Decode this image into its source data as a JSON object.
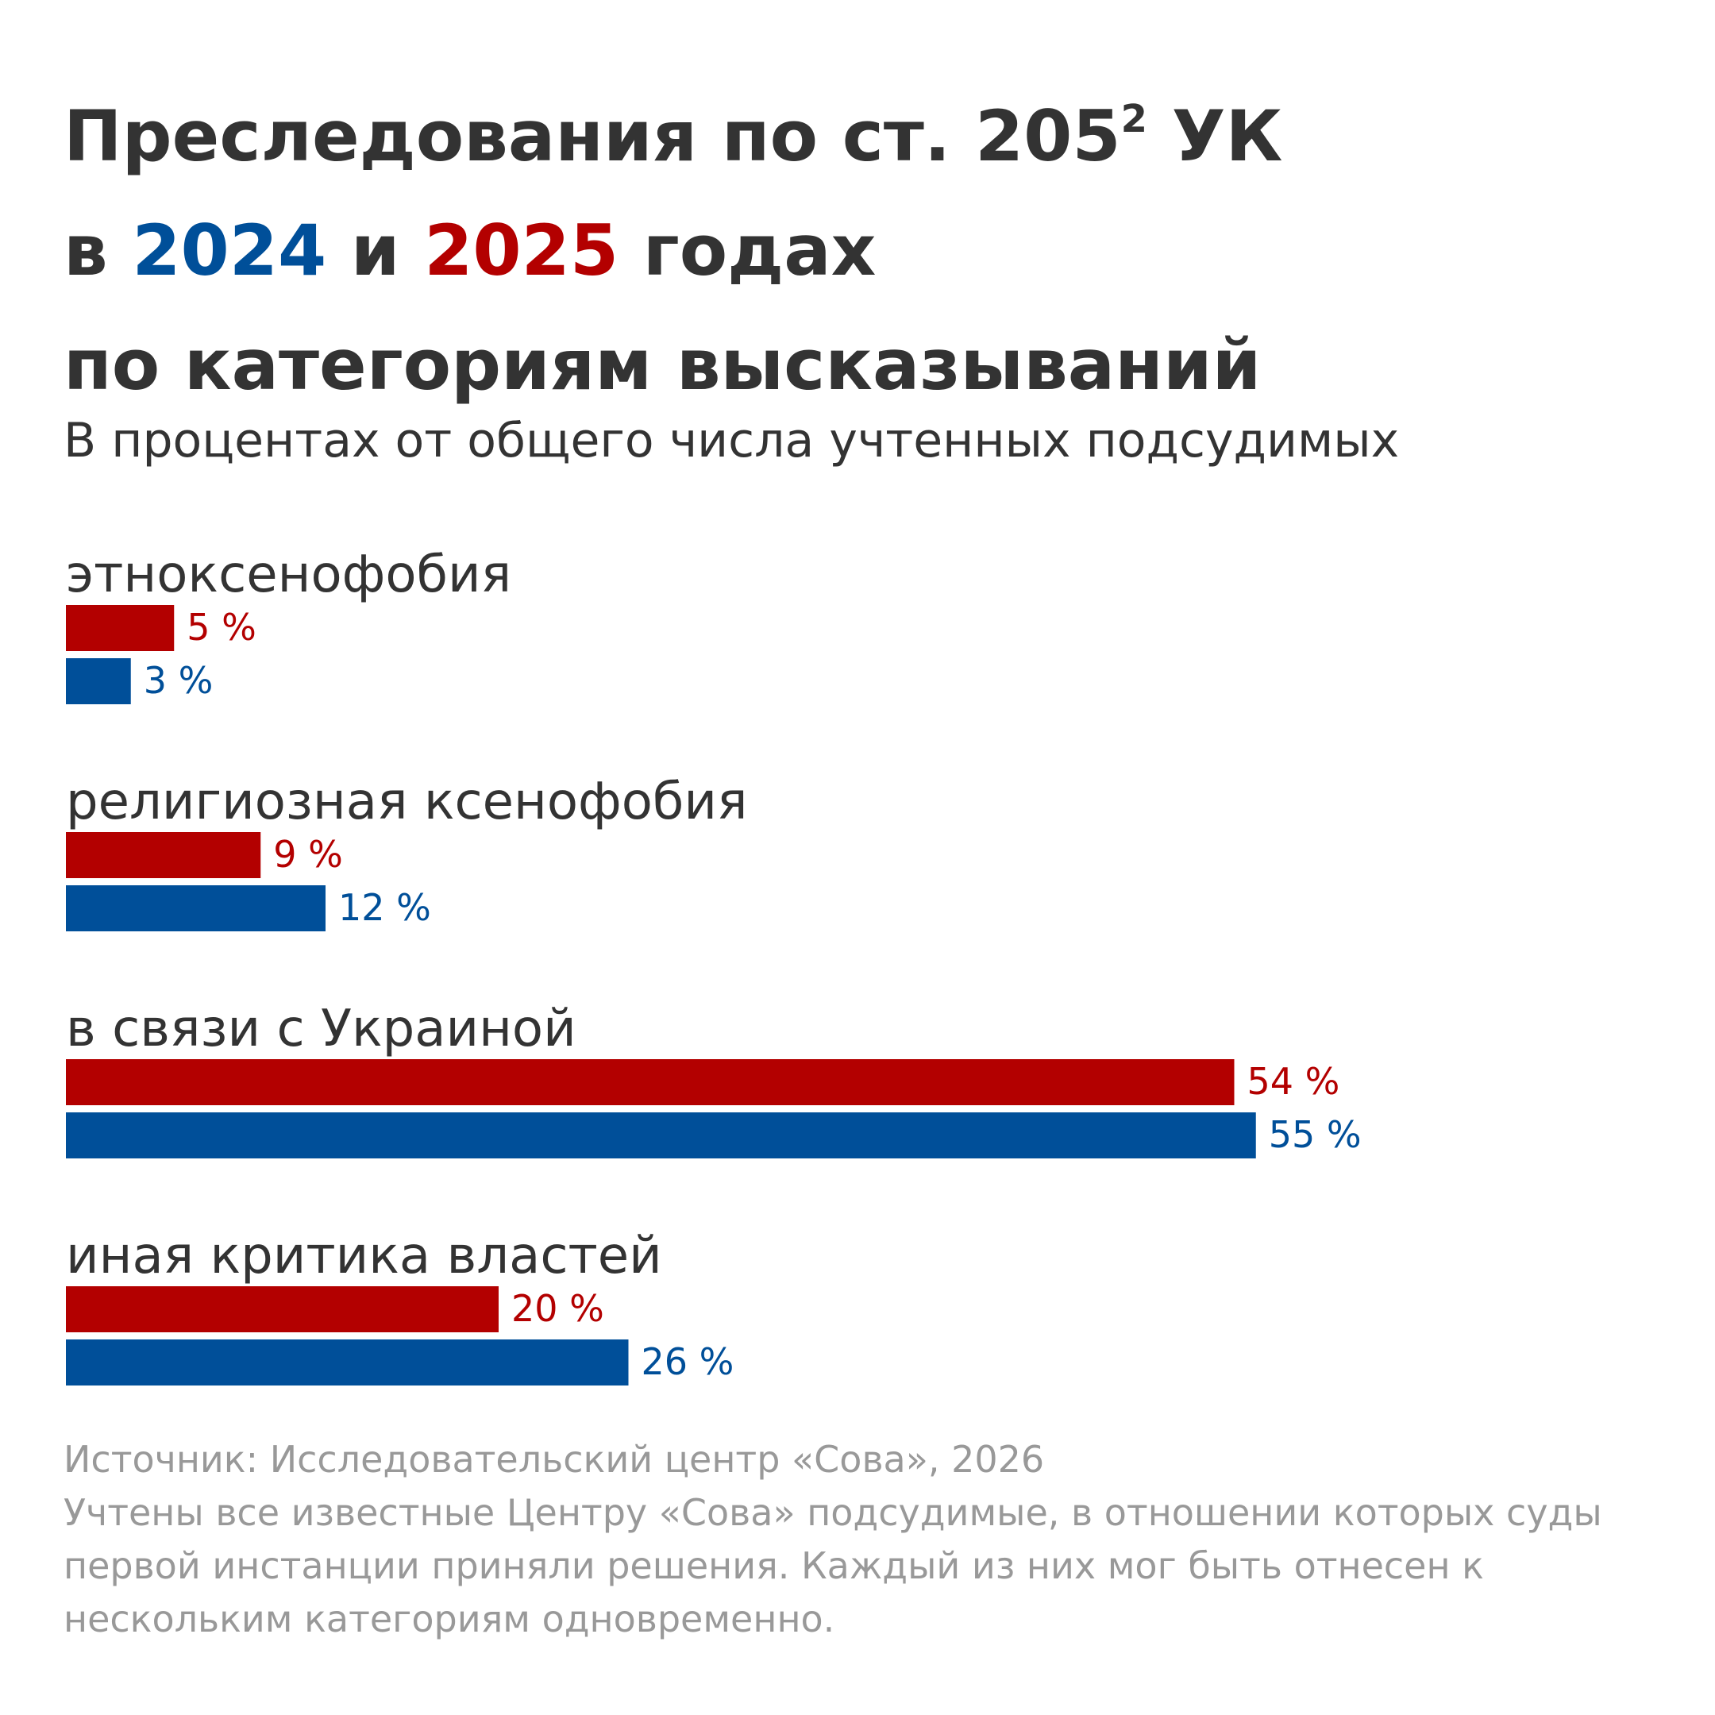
{
  "header": {
    "title_line1_prefix": "Преследования по ст. 205",
    "title_line1_sup": "2",
    "title_line1_suffix": " УК",
    "title_line2_prefix": "в ",
    "title_line2_year_a": "2024",
    "title_line2_mid": " и ",
    "title_line2_year_b": "2025",
    "title_line2_suffix": " годах",
    "title_line3": "по категориям высказываний",
    "subtitle": "В процентах от общего числа учтенных подсудимых"
  },
  "colors": {
    "year_2024": "#004f99",
    "year_2025": "#b30000",
    "text": "#333333",
    "footer": "#999999"
  },
  "chart_data": {
    "type": "bar",
    "orientation": "horizontal",
    "categories": [
      "этноксенофобия",
      "религиозная ксенофобия",
      "в связи с Украиной",
      "иная критика властей"
    ],
    "series": [
      {
        "name": "2025",
        "color": "#b30000",
        "values": [
          5,
          9,
          54,
          20
        ],
        "value_labels": [
          "5 %",
          "9 %",
          "54 %",
          "20 %"
        ]
      },
      {
        "name": "2024",
        "color": "#004f99",
        "values": [
          3,
          12,
          55,
          26
        ],
        "value_labels": [
          "3 %",
          "12 %",
          "55 %",
          "26 %"
        ]
      }
    ],
    "xlim": [
      0,
      60
    ],
    "grid": false,
    "legend": "none"
  },
  "footer": {
    "source": "Источник: Исследовательский центр «Сова», 2026",
    "note": "Учтены все известные Центру «Сова» подсудимые, в отношении которых суды первой инстанции приняли решения. Каждый из них мог быть отнесен к нескольким категориям одновременно."
  }
}
